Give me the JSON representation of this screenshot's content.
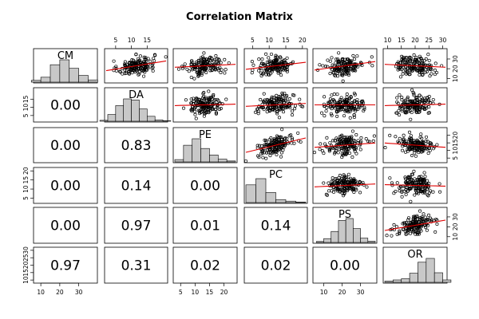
{
  "chart_data": {
    "type": "scatter",
    "title": "Correlation Matrix",
    "variables": [
      "CM",
      "DA",
      "PE",
      "PC",
      "PS",
      "OR"
    ],
    "axis_ticks": {
      "CM": [
        10,
        20,
        30
      ],
      "DA": [
        5,
        10,
        15
      ],
      "PE": [
        5,
        10,
        15,
        20
      ],
      "PC": [
        5,
        10,
        15,
        20
      ],
      "PS": [
        10,
        20,
        30
      ],
      "OR": [
        10,
        15,
        20,
        25,
        30
      ]
    },
    "axis_ranges": {
      "CM": [
        7,
        39
      ],
      "DA": [
        2,
        21
      ],
      "PE": [
        3,
        24
      ],
      "PC": [
        3,
        21
      ],
      "PS": [
        5,
        38
      ],
      "OR": [
        9,
        31
      ]
    },
    "lower_panel_values": [
      {
        "row": "DA",
        "col": "CM",
        "value": "0.00"
      },
      {
        "row": "PE",
        "col": "CM",
        "value": "0.00"
      },
      {
        "row": "PE",
        "col": "DA",
        "value": "0.83"
      },
      {
        "row": "PC",
        "col": "CM",
        "value": "0.00"
      },
      {
        "row": "PC",
        "col": "DA",
        "value": "0.14"
      },
      {
        "row": "PC",
        "col": "PE",
        "value": "0.00"
      },
      {
        "row": "PS",
        "col": "CM",
        "value": "0.00"
      },
      {
        "row": "PS",
        "col": "DA",
        "value": "0.97"
      },
      {
        "row": "PS",
        "col": "PE",
        "value": "0.01"
      },
      {
        "row": "PS",
        "col": "PC",
        "value": "0.14"
      },
      {
        "row": "OR",
        "col": "CM",
        "value": "0.97"
      },
      {
        "row": "OR",
        "col": "DA",
        "value": "0.31"
      },
      {
        "row": "OR",
        "col": "PE",
        "value": "0.02"
      },
      {
        "row": "OR",
        "col": "PC",
        "value": "0.02"
      },
      {
        "row": "OR",
        "col": "PS",
        "value": "0.00"
      }
    ],
    "histograms": [
      {
        "variable": "CM",
        "bins": [
          5,
          10,
          15,
          20,
          25,
          30,
          35,
          40
        ],
        "heights": [
          0.08,
          0.22,
          0.78,
          1.0,
          0.62,
          0.3,
          0.1
        ]
      },
      {
        "variable": "DA",
        "bins": [
          0,
          2.5,
          5,
          7.5,
          10,
          12.5,
          15,
          17.5,
          20,
          22.5
        ],
        "heights": [
          0.04,
          0.3,
          0.7,
          1.0,
          0.95,
          0.55,
          0.22,
          0.06,
          0.02
        ]
      },
      {
        "variable": "PE",
        "bins": [
          3,
          6,
          9,
          12,
          15,
          18,
          21,
          24
        ],
        "heights": [
          0.1,
          0.72,
          1.0,
          0.58,
          0.3,
          0.12,
          0.04
        ]
      },
      {
        "variable": "PC",
        "bins": [
          3,
          6,
          9,
          12,
          15,
          18,
          21
        ],
        "heights": [
          0.74,
          1.0,
          0.42,
          0.12,
          0.06,
          0.02
        ]
      },
      {
        "variable": "PS",
        "bins": [
          6,
          10,
          14,
          18,
          22,
          26,
          30,
          34,
          38
        ],
        "heights": [
          0.04,
          0.16,
          0.46,
          0.92,
          1.0,
          0.58,
          0.18,
          0.05
        ]
      },
      {
        "variable": "OR",
        "bins": [
          9,
          12,
          15,
          18,
          21,
          24,
          27,
          30,
          33
        ],
        "heights": [
          0.05,
          0.1,
          0.15,
          0.38,
          0.84,
          1.0,
          0.4,
          0.1
        ]
      }
    ],
    "scatter_pairs": [
      {
        "x": "DA",
        "y": "CM",
        "correlation": 0.35
      },
      {
        "x": "PE",
        "y": "CM",
        "correlation": 0.1
      },
      {
        "x": "PC",
        "y": "CM",
        "correlation": 0.25
      },
      {
        "x": "PS",
        "y": "CM",
        "correlation": 0.3
      },
      {
        "x": "OR",
        "y": "CM",
        "correlation": -0.1
      },
      {
        "x": "PE",
        "y": "DA",
        "correlation": 0.05
      },
      {
        "x": "PC",
        "y": "DA",
        "correlation": 0.1
      },
      {
        "x": "PS",
        "y": "DA",
        "correlation": 0.0
      },
      {
        "x": "OR",
        "y": "DA",
        "correlation": 0.05
      },
      {
        "x": "PC",
        "y": "PE",
        "correlation": 0.5
      },
      {
        "x": "PS",
        "y": "PE",
        "correlation": 0.15
      },
      {
        "x": "OR",
        "y": "PE",
        "correlation": -0.15
      },
      {
        "x": "PS",
        "y": "PC",
        "correlation": 0.1
      },
      {
        "x": "OR",
        "y": "PC",
        "correlation": -0.05
      },
      {
        "x": "OR",
        "y": "PS",
        "correlation": 0.35
      }
    ],
    "fit_line_color": "#e00000",
    "histogram_fill": "#c8c8c8"
  }
}
